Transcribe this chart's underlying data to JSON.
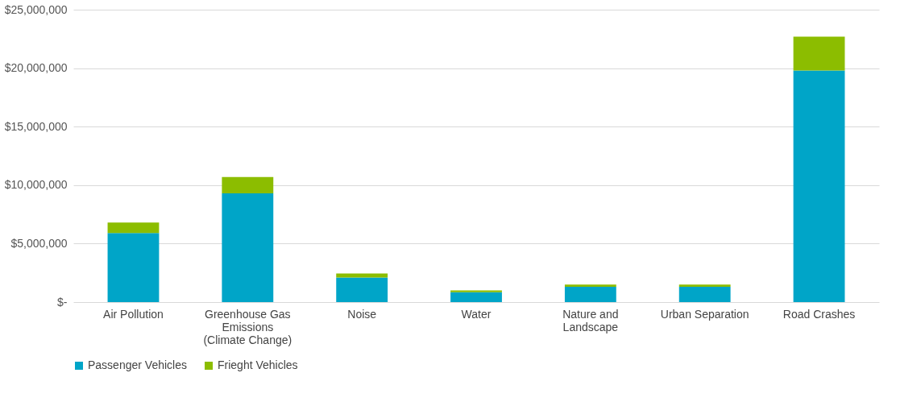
{
  "chart_data": {
    "type": "bar",
    "stacked": true,
    "categories": [
      "Air Pollution",
      "Greenhouse Gas Emissions (Climate Change)",
      "Noise",
      "Water",
      "Nature and Landscape",
      "Urban Separation",
      "Road Crashes"
    ],
    "series": [
      {
        "name": "Passenger Vehicles",
        "color": "#00a5c8",
        "values": [
          5900000,
          9300000,
          2100000,
          850000,
          1300000,
          1300000,
          19800000
        ]
      },
      {
        "name": "Frieght Vehicles",
        "color": "#8cbd00",
        "values": [
          900000,
          1400000,
          350000,
          150000,
          200000,
          200000,
          2900000
        ]
      }
    ],
    "ylim": [
      0,
      25000000
    ],
    "yticks": [
      {
        "value": 0,
        "label": "$-"
      },
      {
        "value": 5000000,
        "label": "$5,000,000"
      },
      {
        "value": 10000000,
        "label": "$10,000,000"
      },
      {
        "value": 15000000,
        "label": "$15,000,000"
      },
      {
        "value": 20000000,
        "label": "$20,000,000"
      },
      {
        "value": 25000000,
        "label": "$25,000,000"
      }
    ],
    "grid": "y",
    "legend": "bottom"
  }
}
